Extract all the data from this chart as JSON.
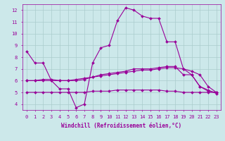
{
  "background_color": "#cce8ea",
  "grid_color": "#aacccc",
  "line_color": "#990099",
  "marker": "D",
  "marker_size": 2.0,
  "line_width": 0.8,
  "xlim": [
    -0.5,
    23.5
  ],
  "ylim": [
    3.5,
    12.5
  ],
  "yticks": [
    4,
    5,
    6,
    7,
    8,
    9,
    10,
    11,
    12
  ],
  "xticks": [
    0,
    1,
    2,
    3,
    4,
    5,
    6,
    7,
    8,
    9,
    10,
    11,
    12,
    13,
    14,
    15,
    16,
    17,
    18,
    19,
    20,
    21,
    22,
    23
  ],
  "xlabel": "Windchill (Refroidissement éolien,°C)",
  "xlabel_fontsize": 5.5,
  "tick_fontsize": 5,
  "series": [
    [
      8.5,
      7.5,
      7.5,
      6.0,
      5.3,
      5.3,
      3.7,
      4.0,
      7.5,
      8.8,
      9.0,
      11.1,
      12.2,
      12.0,
      11.5,
      11.3,
      11.3,
      9.3,
      9.3,
      7.0,
      6.5,
      5.5,
      5.2,
      4.9
    ],
    [
      6.0,
      6.0,
      6.1,
      6.1,
      6.0,
      6.0,
      6.1,
      6.2,
      6.3,
      6.5,
      6.6,
      6.7,
      6.8,
      7.0,
      7.0,
      7.0,
      7.1,
      7.2,
      7.2,
      6.5,
      6.5,
      5.5,
      5.1,
      5.0
    ],
    [
      6.0,
      6.0,
      6.0,
      6.0,
      6.0,
      6.0,
      6.0,
      6.1,
      6.3,
      6.4,
      6.5,
      6.6,
      6.7,
      6.8,
      6.9,
      6.9,
      7.0,
      7.1,
      7.1,
      7.0,
      6.8,
      6.5,
      5.5,
      5.0
    ],
    [
      5.0,
      5.0,
      5.0,
      5.0,
      5.0,
      5.0,
      5.0,
      5.0,
      5.1,
      5.1,
      5.1,
      5.2,
      5.2,
      5.2,
      5.2,
      5.2,
      5.2,
      5.1,
      5.1,
      5.0,
      5.0,
      5.0,
      5.0,
      5.0
    ]
  ]
}
